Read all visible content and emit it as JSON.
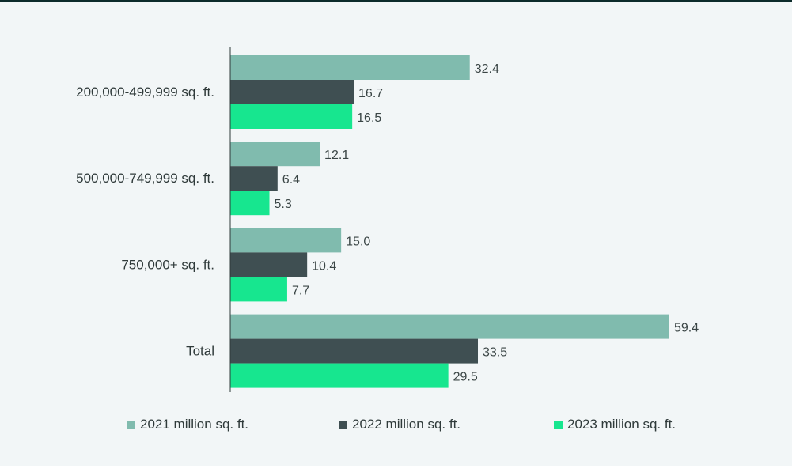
{
  "chart_data": {
    "type": "bar",
    "orientation": "horizontal",
    "title": "",
    "xlabel": "",
    "ylabel": "",
    "categories": [
      "200,000-499,999 sq. ft.",
      "500,000-749,999 sq. ft.",
      "750,000+ sq. ft.",
      "Total"
    ],
    "series": [
      {
        "name": "2021 million sq. ft.",
        "values": [
          32.4,
          12.1,
          15.0,
          59.4
        ],
        "labels": [
          "32.4",
          "12.1",
          "15.0",
          "59.4"
        ],
        "color": "#80bbae"
      },
      {
        "name": "2022 million sq. ft.",
        "values": [
          16.7,
          6.4,
          10.4,
          33.5
        ],
        "labels": [
          "16.7",
          "6.4",
          "10.4",
          "33.5"
        ],
        "color": "#3f4f52"
      },
      {
        "name": "2023 million sq. ft.",
        "values": [
          16.5,
          5.3,
          7.7,
          29.5
        ],
        "labels": [
          "16.5",
          "5.3",
          "7.7",
          "29.5"
        ],
        "color": "#17e68f"
      }
    ],
    "xlim": [
      0,
      59.4
    ],
    "grid": false,
    "legend_position": "bottom"
  },
  "colors": {
    "background": "#f2f6f7",
    "axis": "#2f3a3a",
    "text": "#2f3a3a"
  }
}
